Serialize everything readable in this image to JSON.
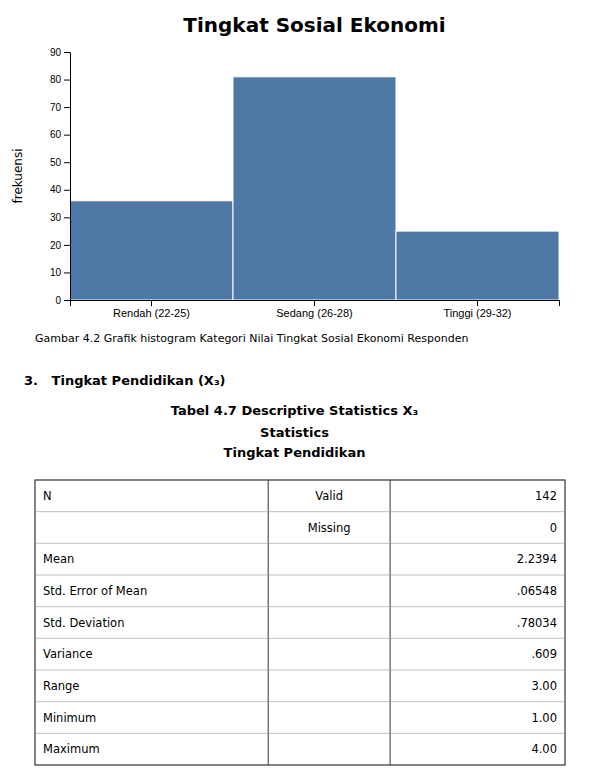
{
  "chart_data": [
    {
      "type": "bar",
      "title": "Tingkat Sosial Ekonomi",
      "y_label": "frekuensi",
      "categories": [
        "Rendah (22-25)",
        "Sedang (26-28)",
        "Tinggi (29-32)"
      ],
      "values": [
        36,
        81,
        25
      ],
      "ylim": [
        0,
        90
      ],
      "yticks": [
        0,
        10,
        20,
        30,
        40,
        50,
        60,
        70,
        80,
        90
      ],
      "grid": false,
      "annotations": [
        "Gambar 4.2 Grafik histogram Kategori Nilai Tingkat Sosial Ekonomi Responden"
      ]
    },
    {
      "type": "table",
      "annotations": [
        "3.   Tingkat Pendidikan (X₃)"
      ],
      "title": "Tabel 4.7 Descriptive Statistics X₃",
      "subtitle": [
        "Statistics",
        "Tingkat Pendidikan"
      ],
      "rows": [
        [
          "N",
          "Valid",
          "142"
        ],
        [
          null,
          "Missing",
          "0"
        ],
        [
          "Mean",
          null,
          "2.2394"
        ],
        [
          "Std. Error of Mean",
          null,
          ".06548"
        ],
        [
          "Std. Deviation",
          null,
          ".78034"
        ],
        [
          "Variance",
          null,
          ".609"
        ],
        [
          "Range",
          null,
          "3.00"
        ],
        [
          "Minimum",
          null,
          "1.00"
        ],
        [
          "Maximum",
          null,
          "4.00"
        ]
      ]
    }
  ]
}
